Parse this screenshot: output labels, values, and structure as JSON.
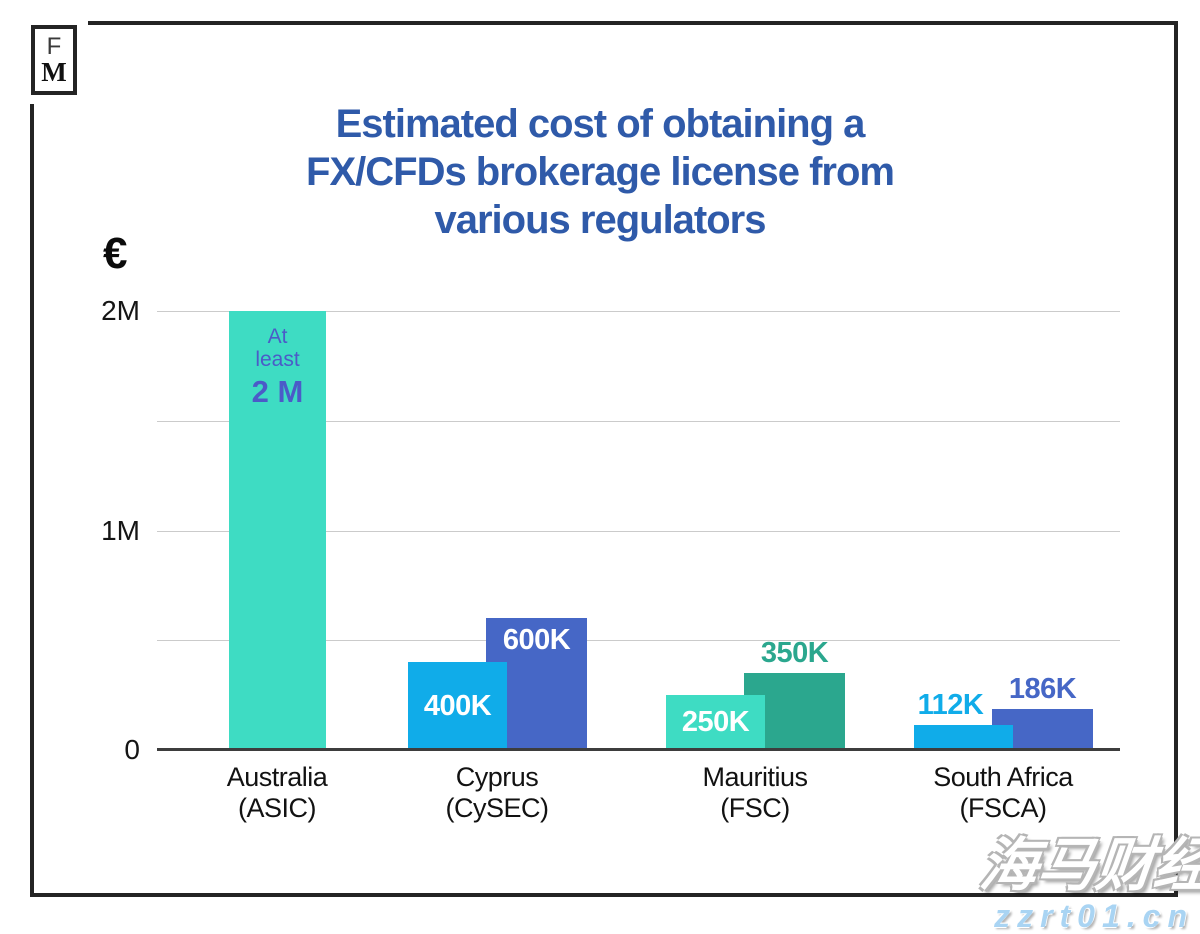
{
  "logo": {
    "top_letter": "F",
    "bottom_letter": "M"
  },
  "title": {
    "lines": [
      "Estimated cost of obtaining a",
      "FX/CFDs brokerage license from",
      "various regulators"
    ]
  },
  "chart_data": {
    "type": "bar",
    "title": "Estimated cost of obtaining a FX/CFDs brokerage license from various regulators",
    "currency_symbol": "€",
    "ylabel": "€",
    "ylim": [
      0,
      2000000
    ],
    "grid": true,
    "gridline_values": [
      2000000,
      1500000,
      1000000,
      500000
    ],
    "yticks": [
      {
        "value": 2000000,
        "label": "2M"
      },
      {
        "value": 1000000,
        "label": "1M"
      },
      {
        "value": 0,
        "label": "0"
      }
    ],
    "groups": [
      {
        "category": "Australia",
        "regulator": "(ASIC)",
        "bars": [
          {
            "value": 2000000,
            "label": "At least 2 M",
            "label_lines": [
              "At",
              "least",
              "2 M"
            ],
            "color": "#3EDCC3",
            "label_style": "inside-top-stacked",
            "label_color": "#4B5BC8"
          }
        ]
      },
      {
        "category": "Cyprus",
        "regulator": "(CySEC)",
        "bars": [
          {
            "value": 400000,
            "label": "400K",
            "color": "#10ACE9",
            "label_style": "inside-middle",
            "label_color": "#FFFFFF"
          },
          {
            "value": 600000,
            "label": "600K",
            "color": "#4667C6",
            "label_style": "inside-top",
            "label_color": "#FFFFFF"
          }
        ]
      },
      {
        "category": "Mauritius",
        "regulator": "(FSC)",
        "bars": [
          {
            "value": 250000,
            "label": "250K",
            "color": "#3EDCC3",
            "label_style": "inside-middle",
            "label_color": "#FFFFFF"
          },
          {
            "value": 350000,
            "label": "350K",
            "color": "#2BA78E",
            "label_style": "above",
            "label_color": "#2BA78E"
          }
        ]
      },
      {
        "category": "South Africa",
        "regulator": "(FSCA)",
        "bars": [
          {
            "value": 112000,
            "label": "112K",
            "color": "#10ACE9",
            "label_style": "above",
            "label_color": "#10ACE9"
          },
          {
            "value": 186000,
            "label": "186K",
            "color": "#4667C6",
            "label_style": "above",
            "label_color": "#4667C6"
          }
        ]
      }
    ]
  },
  "watermark": {
    "brand": "海马财经",
    "url": "zzrt01.cn"
  },
  "colors": {
    "title_blue": "#2F5AA9",
    "teal": "#3EDCC3",
    "bright_blue": "#10ACE9",
    "indigo": "#4667C6",
    "green": "#2BA78E",
    "annotation_indigo": "#4B5BC8",
    "gridline": "#cbcbcb",
    "baseline": "#3d3d3d",
    "frame": "#242424",
    "watermark_blue": "#a9d4f3"
  }
}
